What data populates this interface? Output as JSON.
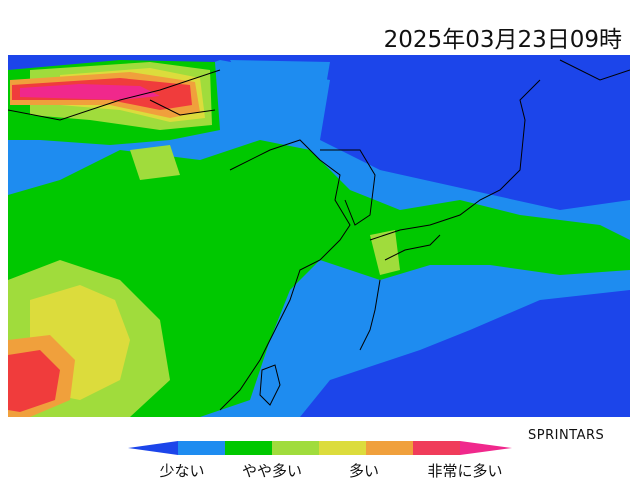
{
  "header": {
    "title": "2025年03月23日09時"
  },
  "credit": "SPRINTARS",
  "legend": {
    "labels": [
      "少ない",
      "やや多い",
      "多い",
      "非常に多い"
    ]
  }
}
